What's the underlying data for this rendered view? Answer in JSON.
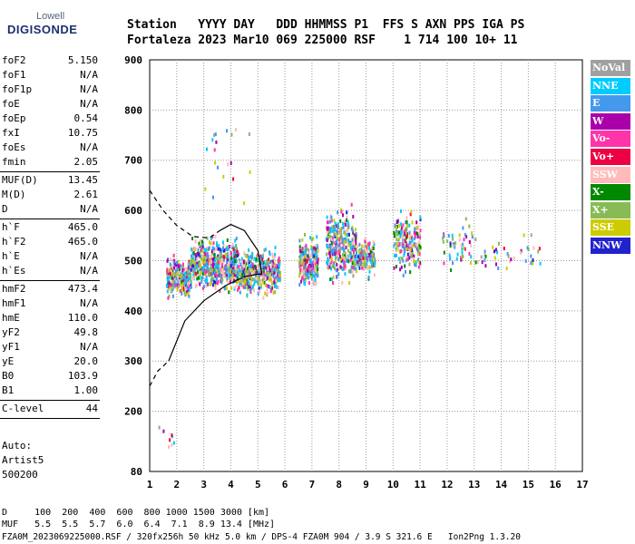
{
  "logo": {
    "line1": "Lowell",
    "line2": "DIGISONDE"
  },
  "header": {
    "line1": "Station   YYYY DAY   DDD HHMMSS P1  FFS S AXN PPS IGA PS",
    "line2": "Fortaleza 2023 Mar10 069 225000 RSF    1 714 100 10+ 11"
  },
  "params": [
    {
      "label": "foF2",
      "value": "5.150"
    },
    {
      "label": "foF1",
      "value": "N/A"
    },
    {
      "label": "foF1p",
      "value": "N/A"
    },
    {
      "label": "foE",
      "value": "N/A"
    },
    {
      "label": "foEp",
      "value": "0.54"
    },
    {
      "label": "fxI",
      "value": "10.75"
    },
    {
      "label": "foEs",
      "value": "N/A"
    },
    {
      "label": "fmin",
      "value": "2.05"
    },
    {
      "label": "MUF(D)",
      "value": "13.45"
    },
    {
      "label": "M(D)",
      "value": "2.61"
    },
    {
      "label": "D",
      "value": "N/A"
    },
    {
      "label": "h`F",
      "value": "465.0"
    },
    {
      "label": "h`F2",
      "value": "465.0"
    },
    {
      "label": "h`E",
      "value": "N/A"
    },
    {
      "label": "h`Es",
      "value": "N/A"
    },
    {
      "label": "hmF2",
      "value": "473.4"
    },
    {
      "label": "hmF1",
      "value": "N/A"
    },
    {
      "label": "hmE",
      "value": "110.0"
    },
    {
      "label": "yF2",
      "value": "49.8"
    },
    {
      "label": "yF1",
      "value": "N/A"
    },
    {
      "label": "yE",
      "value": "20.0"
    },
    {
      "label": "B0",
      "value": "103.9"
    },
    {
      "label": "B1",
      "value": "1.00"
    },
    {
      "label": "C-level",
      "value": "44"
    }
  ],
  "autoscaling": {
    "line1": "Auto:",
    "line2": "Artist5",
    "line3": "500200"
  },
  "legend": [
    {
      "label": "NoVal",
      "color": "#a0a0a0"
    },
    {
      "label": "NNE",
      "color": "#00ccff"
    },
    {
      "label": "E",
      "color": "#4499ee"
    },
    {
      "label": "W",
      "color": "#aa00aa"
    },
    {
      "label": "Vo-",
      "color": "#ff33aa"
    },
    {
      "label": "Vo+",
      "color": "#ee0044"
    },
    {
      "label": "SSW",
      "color": "#ffbbbb"
    },
    {
      "label": "X-",
      "color": "#008800"
    },
    {
      "label": "X+",
      "color": "#88bb55"
    },
    {
      "label": "SSE",
      "color": "#cccc00"
    },
    {
      "label": "NNW",
      "color": "#2222cc"
    }
  ],
  "bottom": {
    "d_row": "D     100  200  400  600  800 1000 1500 3000 [km]",
    "muf_row": "MUF   5.5  5.5  5.7  6.0  6.4  7.1  8.9 13.4 [MHz]",
    "file_row": "FZA0M_2023069225000.RSF / 320fx256h 50 kHz 5.0 km / DPS-4 FZA0M 904 / 3.9 S 321.6 E   Ion2Png 1.3.20"
  },
  "chart_data": {
    "type": "scatter",
    "xlim": [
      1,
      17
    ],
    "ylim": [
      80,
      900
    ],
    "x_ticks": [
      1,
      2,
      3,
      4,
      5,
      6,
      7,
      8,
      9,
      10,
      11,
      12,
      13,
      14,
      15,
      16,
      17
    ],
    "y_ticks": [
      80,
      200,
      300,
      400,
      500,
      600,
      700,
      800,
      900
    ],
    "grid": true,
    "legend_position": "right",
    "clusters": [
      {
        "x": [
          1.6,
          2.5
        ],
        "y": [
          420,
          520
        ],
        "n": 260
      },
      {
        "x": [
          2.5,
          4.2
        ],
        "y": [
          430,
          560
        ],
        "n": 520
      },
      {
        "x": [
          4.2,
          5.8
        ],
        "y": [
          420,
          540
        ],
        "n": 380
      },
      {
        "x": [
          6.5,
          7.2
        ],
        "y": [
          440,
          560
        ],
        "n": 240
      },
      {
        "x": [
          7.5,
          8.6
        ],
        "y": [
          440,
          620
        ],
        "n": 320
      },
      {
        "x": [
          8.6,
          9.3
        ],
        "y": [
          460,
          560
        ],
        "n": 160
      },
      {
        "x": [
          10.0,
          11.0
        ],
        "y": [
          460,
          620
        ],
        "n": 200
      },
      {
        "x": [
          11.8,
          13.0
        ],
        "y": [
          470,
          600
        ],
        "n": 50
      },
      {
        "x": [
          13.0,
          15.5
        ],
        "y": [
          470,
          560
        ],
        "n": 40
      },
      {
        "x": [
          3.0,
          4.7
        ],
        "y": [
          560,
          840
        ],
        "n": 20
      },
      {
        "x": [
          1.3,
          1.9
        ],
        "y": [
          120,
          185
        ],
        "n": 8
      }
    ],
    "profile_solid": [
      [
        1.7,
        300
      ],
      [
        2.3,
        380
      ],
      [
        3,
        420
      ],
      [
        3.8,
        450
      ],
      [
        4.5,
        468
      ],
      [
        5.0,
        473
      ],
      [
        5.15,
        473
      ]
    ],
    "profile_solid_upper": [
      [
        3.6,
        560
      ],
      [
        4.0,
        572
      ],
      [
        4.5,
        560
      ],
      [
        5.0,
        520
      ],
      [
        5.15,
        473
      ]
    ],
    "profile_dashed": [
      [
        1.0,
        250
      ],
      [
        1.3,
        280
      ],
      [
        1.7,
        300
      ]
    ],
    "profile_dashed_upper": [
      [
        1.0,
        640
      ],
      [
        1.5,
        600
      ],
      [
        2.0,
        570
      ],
      [
        2.6,
        548
      ],
      [
        3.2,
        545
      ],
      [
        3.6,
        560
      ]
    ]
  }
}
